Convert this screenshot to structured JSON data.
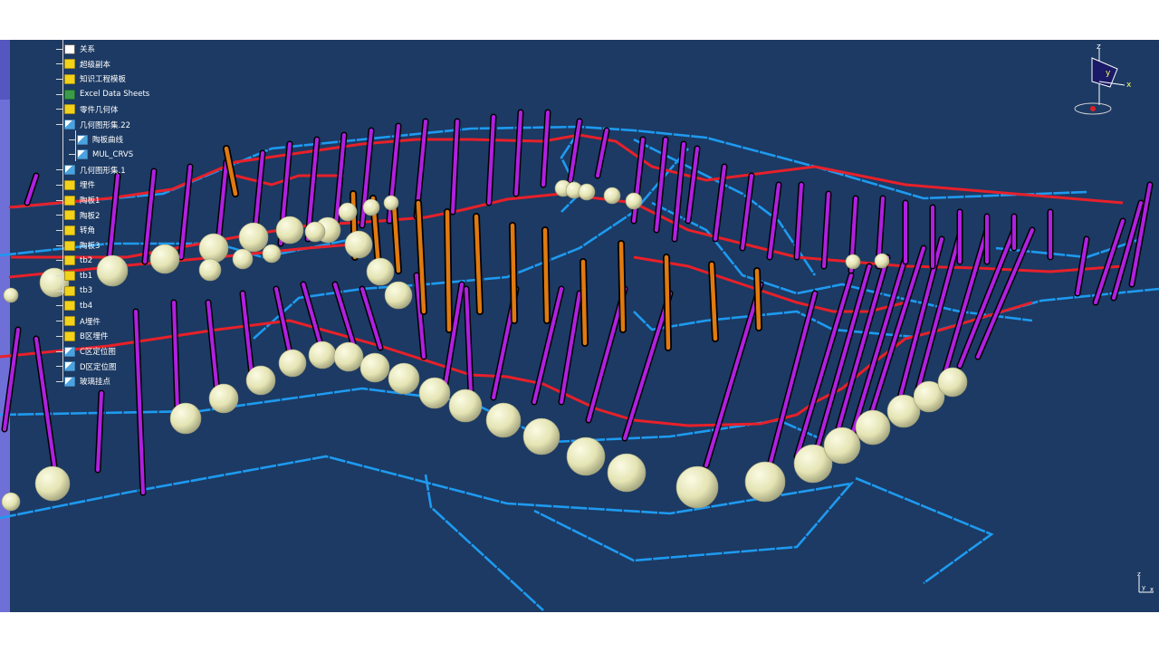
{
  "tree": {
    "items": [
      {
        "label": "关系",
        "icon": "relations-icon"
      },
      {
        "label": "超级副本",
        "icon": "folder-icon"
      },
      {
        "label": "知识工程模板",
        "icon": "folder-icon"
      },
      {
        "label": "Excel Data Sheets",
        "icon": "excel-icon"
      },
      {
        "label": "零件几何体",
        "icon": "part-body-icon"
      },
      {
        "label": "几何图形集.22",
        "icon": "geometric-set-icon"
      },
      {
        "label": "陶板曲线",
        "icon": "geometric-set-icon"
      },
      {
        "label": "MUL_CRVS",
        "icon": "geometric-set-icon"
      },
      {
        "label": "几何图形集.1",
        "icon": "geometric-set-icon"
      },
      {
        "label": "埋件",
        "icon": "folder-icon"
      },
      {
        "label": "陶板1",
        "icon": "folder-icon"
      },
      {
        "label": "陶板2",
        "icon": "folder-icon"
      },
      {
        "label": "转角",
        "icon": "folder-icon"
      },
      {
        "label": "陶板3",
        "icon": "folder-icon"
      },
      {
        "label": "tb2",
        "icon": "folder-icon"
      },
      {
        "label": "tb1",
        "icon": "folder-icon"
      },
      {
        "label": "tb3",
        "icon": "folder-icon"
      },
      {
        "label": "tb4",
        "icon": "folder-icon"
      },
      {
        "label": "A埋件",
        "icon": "folder-icon"
      },
      {
        "label": "B区埋件",
        "icon": "folder-icon"
      },
      {
        "label": "C区定位图",
        "icon": "geometric-set-icon"
      },
      {
        "label": "D区定位图",
        "icon": "geometric-set-icon"
      },
      {
        "label": "玻璃挂点",
        "icon": "geometric-set-icon"
      }
    ]
  },
  "compass": {
    "x_label": "x",
    "y_label": "y",
    "z_label": "z"
  },
  "mini_axis": {
    "x_label": "x",
    "y_label": "y",
    "z_label": "z"
  },
  "colors": {
    "background": "#1c3a63",
    "curve_red": "#e8202a",
    "curve_blue": "#1e9af0",
    "member_purple": "#b020e0",
    "member_orange": "#e07a10",
    "sphere": "#e6e6b8"
  }
}
